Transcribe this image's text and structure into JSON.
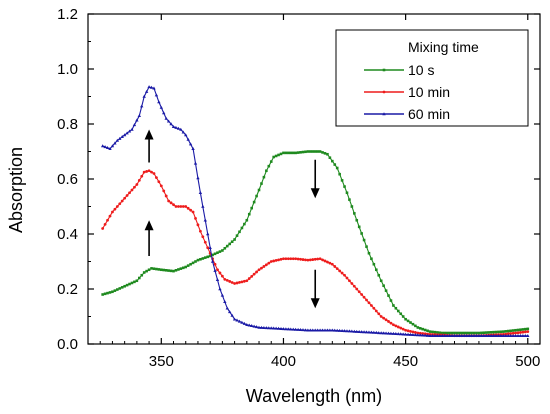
{
  "chart_data": {
    "type": "line",
    "xlabel": "Wavelength (nm)",
    "ylabel": "Absorption",
    "xlim": [
      320,
      505
    ],
    "ylim": [
      0,
      1.2
    ],
    "xticks": [
      350,
      400,
      450,
      500
    ],
    "yticks": [
      0.0,
      0.2,
      0.4,
      0.6,
      0.8,
      1.0,
      1.2
    ],
    "xtick_labels": [
      "350",
      "400",
      "450",
      "500"
    ],
    "ytick_labels": [
      "0.0",
      "0.2",
      "0.4",
      "0.6",
      "0.8",
      "1.0",
      "1.2"
    ],
    "grid": false,
    "legend": {
      "title": "Mixing time",
      "position": "top-right"
    },
    "series": [
      {
        "name": "10 s",
        "color": "#1f8a1f",
        "marker": "square",
        "points": [
          [
            326,
            0.18
          ],
          [
            330,
            0.19
          ],
          [
            335,
            0.21
          ],
          [
            340,
            0.23
          ],
          [
            343,
            0.26
          ],
          [
            346,
            0.275
          ],
          [
            350,
            0.27
          ],
          [
            355,
            0.265
          ],
          [
            360,
            0.28
          ],
          [
            365,
            0.305
          ],
          [
            370,
            0.32
          ],
          [
            375,
            0.34
          ],
          [
            380,
            0.38
          ],
          [
            385,
            0.45
          ],
          [
            390,
            0.56
          ],
          [
            393,
            0.63
          ],
          [
            396,
            0.68
          ],
          [
            400,
            0.695
          ],
          [
            405,
            0.695
          ],
          [
            410,
            0.7
          ],
          [
            415,
            0.7
          ],
          [
            418,
            0.69
          ],
          [
            422,
            0.64
          ],
          [
            426,
            0.55
          ],
          [
            430,
            0.45
          ],
          [
            435,
            0.33
          ],
          [
            440,
            0.23
          ],
          [
            445,
            0.14
          ],
          [
            450,
            0.09
          ],
          [
            455,
            0.06
          ],
          [
            460,
            0.045
          ],
          [
            465,
            0.04
          ],
          [
            470,
            0.04
          ],
          [
            480,
            0.04
          ],
          [
            490,
            0.045
          ],
          [
            500,
            0.055
          ]
        ]
      },
      {
        "name": "10 min",
        "color": "#ee1c1c",
        "marker": "circle",
        "points": [
          [
            326,
            0.42
          ],
          [
            330,
            0.48
          ],
          [
            335,
            0.53
          ],
          [
            340,
            0.58
          ],
          [
            343,
            0.625
          ],
          [
            345,
            0.63
          ],
          [
            347,
            0.62
          ],
          [
            350,
            0.575
          ],
          [
            353,
            0.52
          ],
          [
            356,
            0.5
          ],
          [
            360,
            0.5
          ],
          [
            363,
            0.48
          ],
          [
            366,
            0.41
          ],
          [
            370,
            0.33
          ],
          [
            373,
            0.27
          ],
          [
            376,
            0.235
          ],
          [
            380,
            0.22
          ],
          [
            385,
            0.23
          ],
          [
            390,
            0.27
          ],
          [
            395,
            0.3
          ],
          [
            400,
            0.31
          ],
          [
            405,
            0.31
          ],
          [
            410,
            0.305
          ],
          [
            415,
            0.31
          ],
          [
            420,
            0.29
          ],
          [
            425,
            0.25
          ],
          [
            430,
            0.2
          ],
          [
            435,
            0.15
          ],
          [
            440,
            0.1
          ],
          [
            445,
            0.07
          ],
          [
            450,
            0.05
          ],
          [
            455,
            0.04
          ],
          [
            460,
            0.035
          ],
          [
            470,
            0.03
          ],
          [
            480,
            0.03
          ],
          [
            490,
            0.035
          ],
          [
            500,
            0.045
          ]
        ]
      },
      {
        "name": "60 min",
        "color": "#1a1aa6",
        "marker": "triangle",
        "points": [
          [
            326,
            0.72
          ],
          [
            329,
            0.71
          ],
          [
            332,
            0.74
          ],
          [
            335,
            0.76
          ],
          [
            338,
            0.78
          ],
          [
            341,
            0.83
          ],
          [
            343,
            0.9
          ],
          [
            345,
            0.935
          ],
          [
            347,
            0.93
          ],
          [
            349,
            0.88
          ],
          [
            352,
            0.82
          ],
          [
            355,
            0.79
          ],
          [
            358,
            0.78
          ],
          [
            360,
            0.76
          ],
          [
            363,
            0.71
          ],
          [
            366,
            0.55
          ],
          [
            369,
            0.4
          ],
          [
            371,
            0.3
          ],
          [
            374,
            0.2
          ],
          [
            377,
            0.13
          ],
          [
            380,
            0.09
          ],
          [
            385,
            0.07
          ],
          [
            390,
            0.06
          ],
          [
            400,
            0.055
          ],
          [
            410,
            0.05
          ],
          [
            420,
            0.05
          ],
          [
            430,
            0.045
          ],
          [
            440,
            0.04
          ],
          [
            450,
            0.035
          ],
          [
            460,
            0.03
          ],
          [
            470,
            0.03
          ],
          [
            480,
            0.03
          ],
          [
            490,
            0.03
          ],
          [
            500,
            0.03
          ]
        ]
      }
    ],
    "annotations": [
      {
        "type": "arrow",
        "direction": "up",
        "x": 345,
        "y_from": 0.66,
        "y_to": 0.78
      },
      {
        "type": "arrow",
        "direction": "up",
        "x": 345,
        "y_from": 0.32,
        "y_to": 0.45
      },
      {
        "type": "arrow",
        "direction": "down",
        "x": 413,
        "y_from": 0.67,
        "y_to": 0.53
      },
      {
        "type": "arrow",
        "direction": "down",
        "x": 413,
        "y_from": 0.27,
        "y_to": 0.13
      }
    ]
  }
}
